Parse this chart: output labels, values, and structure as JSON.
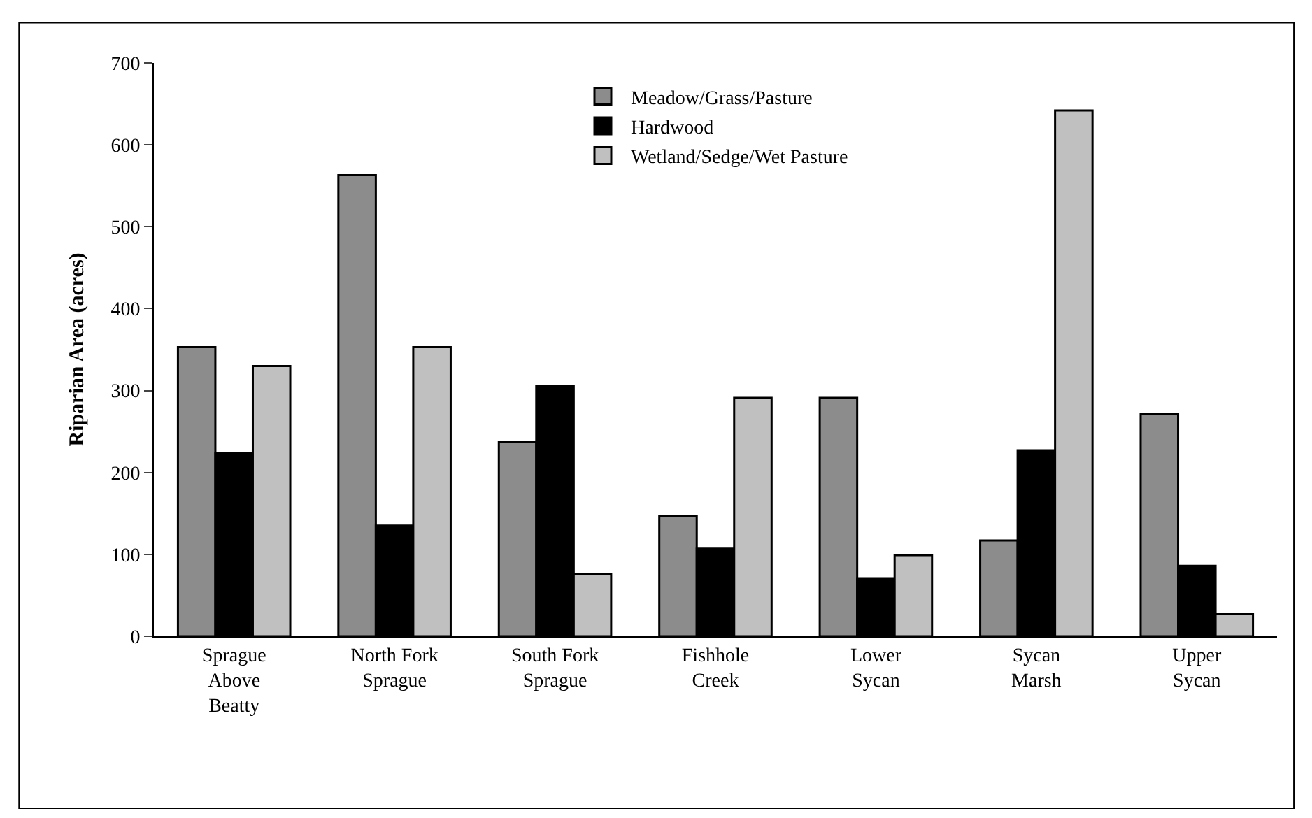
{
  "chart_data": {
    "type": "bar",
    "ylabel": "Riparian Area (acres)",
    "categories": [
      "Sprague Above Beatty",
      "North Fork Sprague",
      "South Fork Sprague",
      "Fishhole Creek",
      "Lower Sycan",
      "Sycan Marsh",
      "Upper Sycan"
    ],
    "series": [
      {
        "name": "Meadow/Grass/Pasture",
        "color": "#8c8c8c",
        "values": [
          353,
          563,
          237,
          147,
          291,
          117,
          271
        ]
      },
      {
        "name": "Hardwood",
        "color": "#000000",
        "values": [
          224,
          135,
          306,
          107,
          70,
          227,
          86
        ]
      },
      {
        "name": "Wetland/Sedge/Wet Pasture",
        "color": "#c0c0c0",
        "values": [
          330,
          353,
          76,
          291,
          99,
          642,
          27
        ]
      }
    ],
    "ylim": [
      0,
      700
    ],
    "yticks": [
      0,
      100,
      200,
      300,
      400,
      500,
      600,
      700
    ],
    "legend": "top"
  }
}
